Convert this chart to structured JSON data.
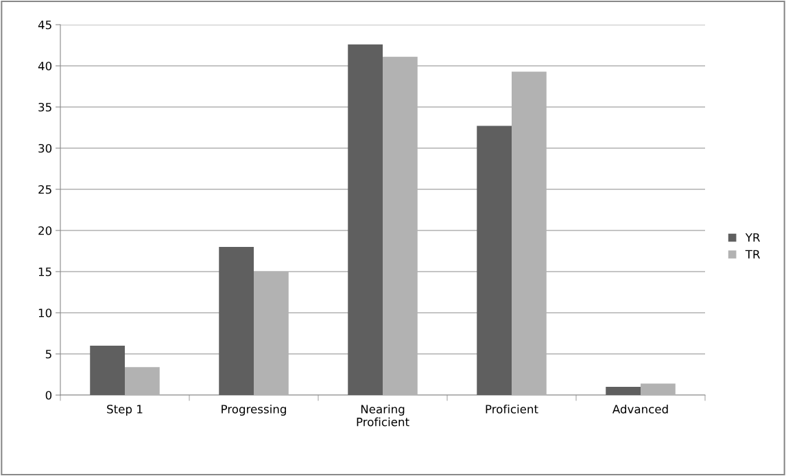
{
  "chart_data": {
    "type": "bar",
    "categories": [
      "Step 1",
      "Progressing",
      "Nearing\nProficient",
      "Proficient",
      "Advanced"
    ],
    "series": [
      {
        "name": "YR",
        "color": "#5f5f5f",
        "values": [
          6.0,
          18.0,
          42.6,
          32.7,
          1.0
        ]
      },
      {
        "name": "TR",
        "color": "#b2b2b2",
        "values": [
          3.4,
          15.0,
          41.1,
          39.3,
          1.4
        ]
      }
    ],
    "ylim": [
      0,
      45
    ],
    "yticks": [
      0,
      5,
      10,
      15,
      20,
      25,
      30,
      35,
      40,
      45
    ],
    "grid": "y",
    "legend": "right"
  }
}
